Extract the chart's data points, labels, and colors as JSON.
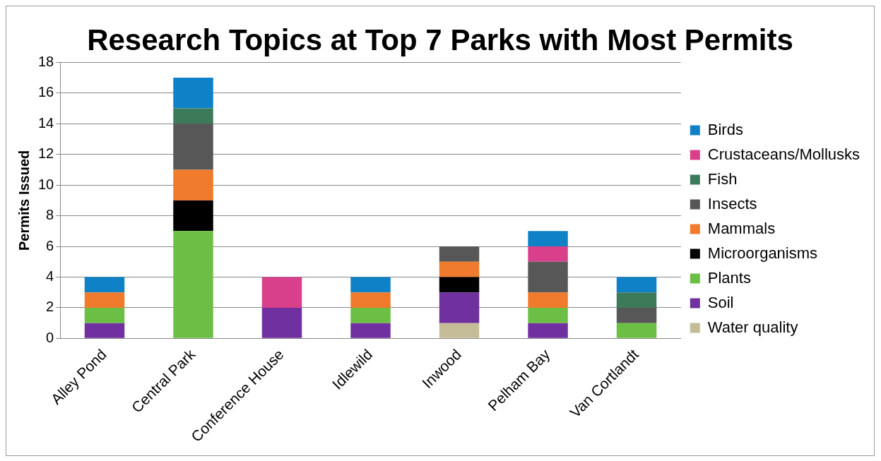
{
  "chart_data": {
    "type": "bar",
    "title": "Research Topics at Top 7 Parks with Most Permits",
    "ylabel": "Permits Issued",
    "categories": [
      "Alley Pond",
      "Central Park",
      "Conference House",
      "Idlewild",
      "Inwood",
      "Pelham Bay",
      "Van Cortlandt"
    ],
    "stacked": true,
    "ylim": [
      0,
      18
    ],
    "yticks": [
      0,
      2,
      4,
      6,
      8,
      10,
      12,
      14,
      16,
      18
    ],
    "grid": "y",
    "legend": "right",
    "series": [
      {
        "name": "Water quality",
        "color": "#c4bc96",
        "values": [
          null,
          null,
          null,
          null,
          1,
          null,
          null
        ]
      },
      {
        "name": "Soil",
        "color": "#7030a0",
        "values": [
          1,
          null,
          2,
          1,
          2,
          1,
          null
        ]
      },
      {
        "name": "Plants",
        "color": "#6cbf45",
        "values": [
          1,
          7,
          null,
          1,
          null,
          1,
          1
        ]
      },
      {
        "name": "Microorganisms",
        "color": "#000000",
        "values": [
          null,
          2,
          null,
          null,
          1,
          null,
          null
        ]
      },
      {
        "name": "Mammals",
        "color": "#f07b2c",
        "values": [
          1,
          2,
          null,
          1,
          1,
          1,
          null
        ]
      },
      {
        "name": "Insects",
        "color": "#575757",
        "values": [
          null,
          3,
          null,
          null,
          1,
          2,
          1
        ]
      },
      {
        "name": "Fish",
        "color": "#3d7a5a",
        "values": [
          null,
          1,
          null,
          null,
          null,
          null,
          1
        ]
      },
      {
        "name": "Crustaceans/Mollusks",
        "color": "#d9408c",
        "values": [
          null,
          null,
          2,
          null,
          null,
          1,
          null
        ]
      },
      {
        "name": "Birds",
        "color": "#0f81c6",
        "values": [
          1,
          2,
          null,
          1,
          null,
          1,
          1
        ]
      }
    ]
  }
}
